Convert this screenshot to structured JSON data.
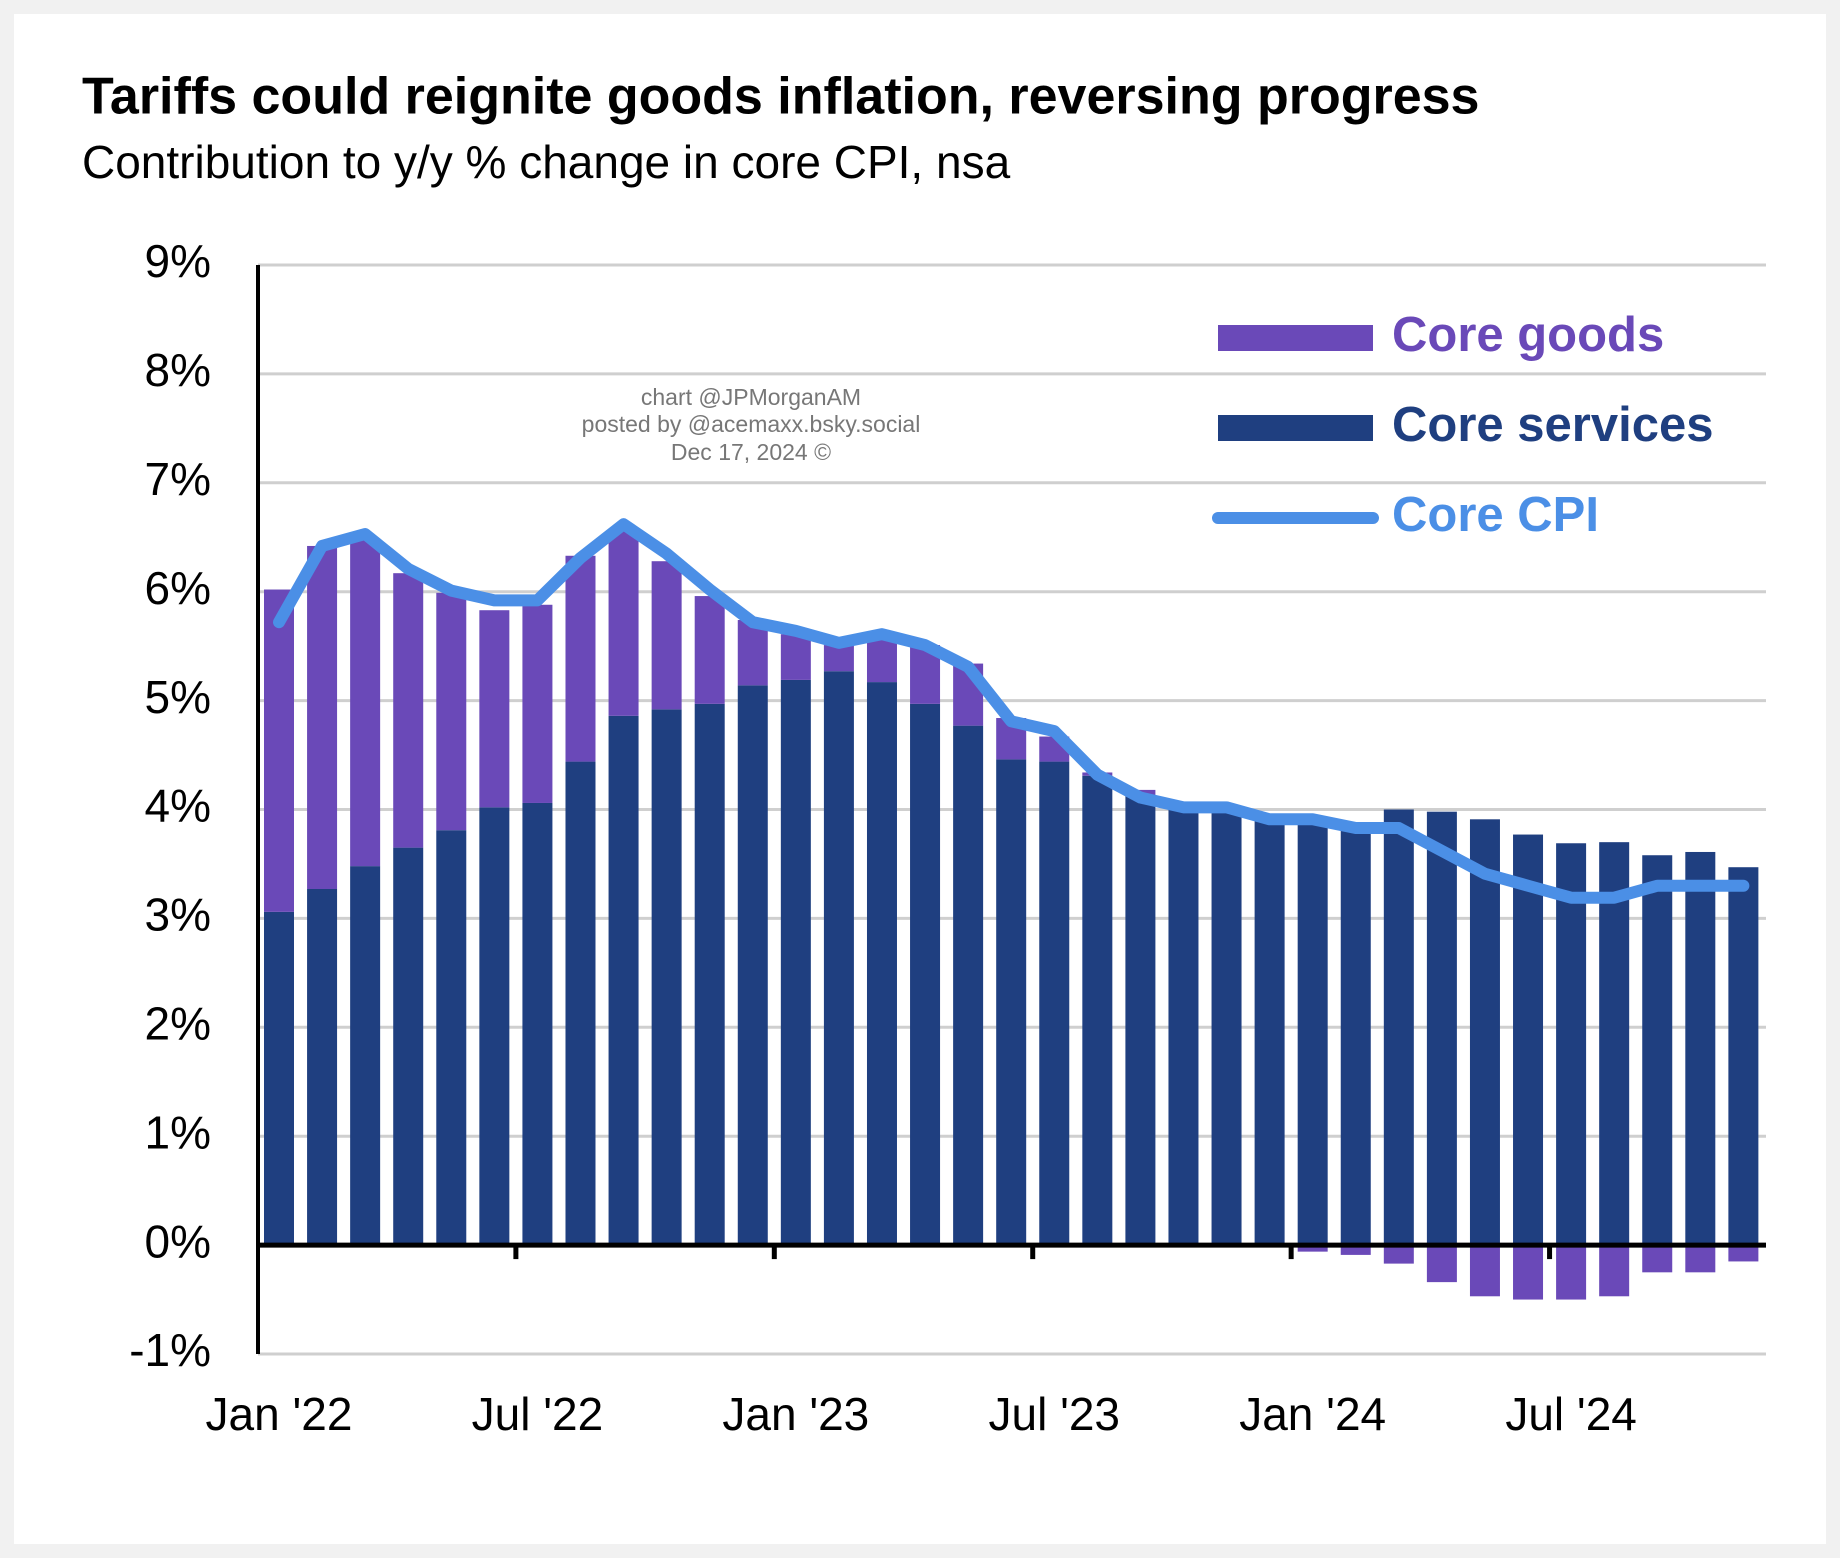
{
  "chart_data": {
    "type": "bar",
    "title": "Tariffs could reignite goods inflation, reversing progress",
    "subtitle": "Contribution to y/y % change in core CPI, nsa",
    "annotations": [
      "chart @JPMorganAM",
      "posted by @acemaxx.bsky.social",
      "Dec 17, 2024 ©"
    ],
    "categories": [
      "Jan '22",
      null,
      null,
      null,
      null,
      null,
      "Jul '22",
      null,
      null,
      null,
      null,
      null,
      "Jan '23",
      null,
      null,
      null,
      null,
      null,
      "Jul '23",
      null,
      null,
      null,
      null,
      null,
      "Jan '24",
      null,
      null,
      null,
      null,
      null,
      "Jul '24",
      null,
      null,
      null,
      null
    ],
    "series": [
      {
        "name": "Core goods",
        "color": "#6a49b8",
        "stack": true,
        "values": [
          2.96,
          3.15,
          3.0,
          2.52,
          2.18,
          1.81,
          1.82,
          1.89,
          1.72,
          1.36,
          0.99,
          0.6,
          0.42,
          0.24,
          0.41,
          0.54,
          0.57,
          0.38,
          0.23,
          0.03,
          0.05,
          0.03,
          0.02,
          0.0,
          -0.06,
          -0.09,
          -0.17,
          -0.34,
          -0.47,
          -0.5,
          -0.5,
          -0.47,
          -0.25,
          -0.25,
          -0.15
        ]
      },
      {
        "name": "Core services",
        "color": "#1f3f80",
        "values": [
          3.06,
          3.27,
          3.48,
          3.65,
          3.81,
          4.02,
          4.06,
          4.44,
          4.86,
          4.92,
          4.97,
          5.14,
          5.19,
          5.27,
          5.17,
          4.97,
          4.77,
          4.46,
          4.44,
          4.31,
          4.13,
          4.02,
          3.97,
          3.89,
          3.87,
          3.83,
          4.0,
          3.98,
          3.91,
          3.77,
          3.69,
          3.7,
          3.58,
          3.61,
          3.47
        ]
      },
      {
        "name": "Core CPI",
        "color": "#4b8fe6",
        "type": "line",
        "values": [
          5.72,
          6.42,
          6.53,
          6.21,
          6.01,
          5.92,
          5.92,
          6.31,
          6.62,
          6.35,
          6.02,
          5.72,
          5.64,
          5.53,
          5.61,
          5.51,
          5.31,
          4.81,
          4.72,
          4.32,
          4.11,
          4.02,
          4.02,
          3.91,
          3.91,
          3.83,
          3.83,
          3.62,
          3.41,
          3.3,
          3.19,
          3.19,
          3.3,
          3.3,
          3.3
        ]
      }
    ],
    "ylim": [
      -1,
      9
    ],
    "yticks": [
      {
        "value": -1,
        "label": "-1%"
      },
      {
        "value": 0,
        "label": "0%"
      },
      {
        "value": 1,
        "label": "1%"
      },
      {
        "value": 2,
        "label": "2%"
      },
      {
        "value": 3,
        "label": "3%"
      },
      {
        "value": 4,
        "label": "4%"
      },
      {
        "value": 5,
        "label": "5%"
      },
      {
        "value": 6,
        "label": "6%"
      },
      {
        "value": 7,
        "label": "7%"
      },
      {
        "value": 8,
        "label": "8%"
      },
      {
        "value": 9,
        "label": "9%"
      }
    ],
    "grid": true,
    "legend": "upper right"
  }
}
